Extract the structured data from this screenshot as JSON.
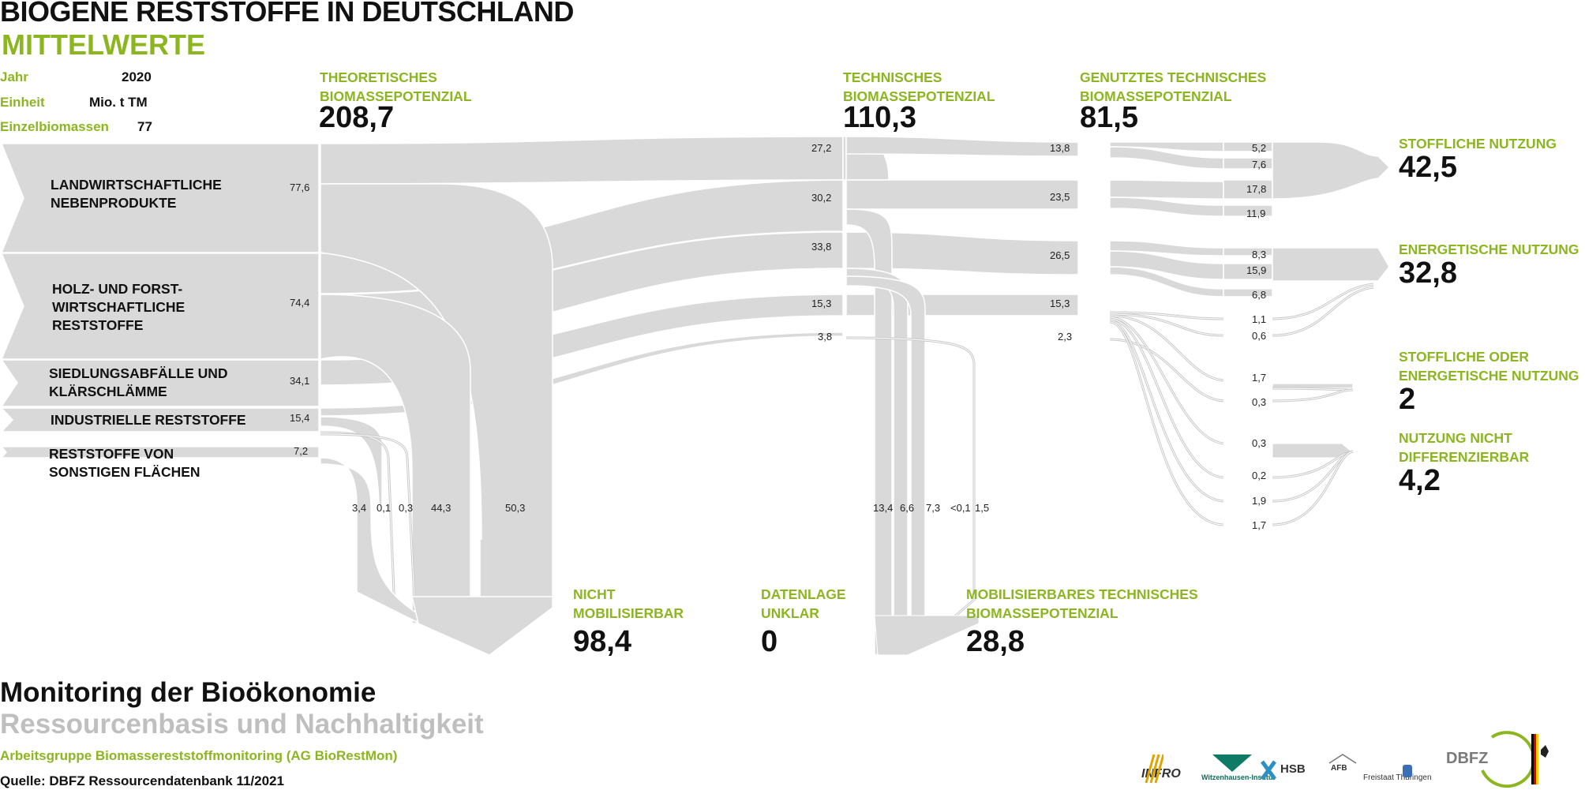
{
  "title": "BIOGENE RESTSTOFFE IN DEUTSCHLAND",
  "subtitle": "MITTELWERTE",
  "meta": [
    {
      "label": "Jahr",
      "value": "2020"
    },
    {
      "label": "Einheit",
      "value": "Mio. t TM"
    },
    {
      "label": "Einzelbiomassen",
      "value": "77"
    }
  ],
  "stages": {
    "theoretisch": {
      "label": "THEORETISCHES BIOMASSEPOTENZIAL",
      "value": "208,7"
    },
    "technisch": {
      "label": "TECHNISCHES BIOMASSEPOTENZIAL",
      "value": "110,3"
    },
    "genutzt": {
      "label": "GENUTZTES TECHNISCHES BIOMASSEPOTENZIAL",
      "value": "81,5"
    }
  },
  "sources": [
    {
      "label": "LANDWIRTSCHAFTLICHE NEBENPRODUKTE",
      "value": "77,6"
    },
    {
      "label": "HOLZ- UND FORST-WIRTSCHAFTLICHE RESTSTOFFE",
      "value": "74,4"
    },
    {
      "label": "SIEDLUNGSABFÄLLE UND KLÄRSCHLÄMME",
      "value": "34,1"
    },
    {
      "label": "INDUSTRIELLE RESTSTOFFE",
      "value": "15,4"
    },
    {
      "label": "RESTSTOFFE VON SONSTIGEN FLÄCHEN",
      "value": "7,2"
    }
  ],
  "technisch_values": [
    "27,2",
    "30,2",
    "33,8",
    "15,3",
    "3,8"
  ],
  "genutzt_values": [
    "13,8",
    "23,5",
    "26,5",
    "15,3",
    "2,3"
  ],
  "usage_values": [
    "5,2",
    "7,6",
    "17,8",
    "11,9",
    "8,3",
    "15,9",
    "6,8",
    "1,1",
    "0,6",
    "1,7",
    "0,3",
    "0,3",
    "0,2",
    "1,9",
    "1,7"
  ],
  "drop_theoretisch_values": [
    "3,4",
    "0,1",
    "0,3",
    "44,3",
    "50,3"
  ],
  "drop_technisch_values": [
    "13,4",
    "6,6",
    "7,3",
    "<0,1",
    "1,5"
  ],
  "outcomes": [
    {
      "label": "STOFFLICHE NUTZUNG",
      "value": "42,5"
    },
    {
      "label": "ENERGETISCHE NUTZUNG",
      "value": "32,8"
    },
    {
      "label": "STOFFLICHE ODER ENERGETISCHE NUTZUNG",
      "value": "2"
    },
    {
      "label": "NUTZUNG NICHT DIFFERENZIERBAR",
      "value": "4,2"
    }
  ],
  "bottom": [
    {
      "label": "NICHT MOBILISIERBAR",
      "value": "98,4"
    },
    {
      "label": "DATENLAGE UNKLAR",
      "value": "0"
    },
    {
      "label": "MOBILISIERBARES TECHNISCHES BIOMASSEPOTENZIAL",
      "value": "28,8"
    }
  ],
  "footer": {
    "title": "Monitoring der Bioökonomie",
    "subtitle": "Ressourcenbasis und Nachhaltigkeit",
    "group": "Arbeitsgruppe Biomassereststoffmonitoring (AG BioRestMon)",
    "source": "Quelle: DBFZ Ressourcendatenbank 11/2021"
  },
  "logos": [
    "INFRO",
    "Witzenhausen-Institut",
    "HSB",
    "AFB",
    "Freistaat Thüringen",
    "DBFZ"
  ],
  "colors": {
    "accent": "#8cb61f",
    "flow": "#d9d9d9",
    "flow_stroke": "#ffffff",
    "text": "#111111"
  }
}
